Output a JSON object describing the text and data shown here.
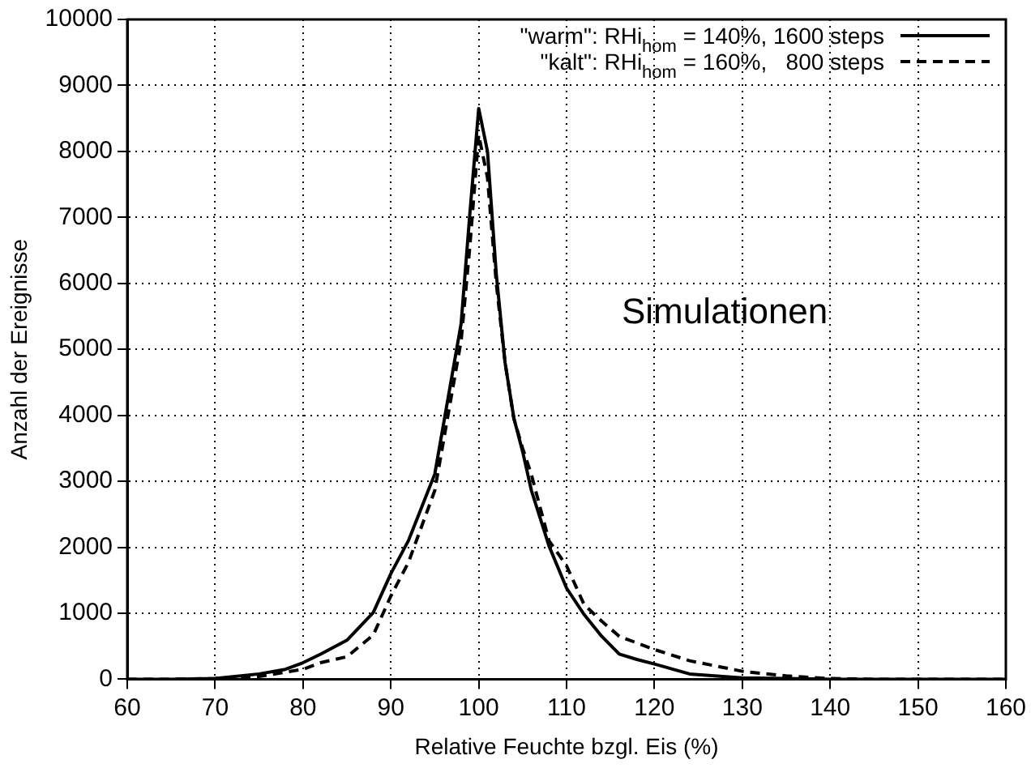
{
  "chart_data": {
    "type": "line",
    "xlabel": "Relative Feuchte bzgl. Eis (%)",
    "ylabel": "Anzahl der Ereignisse",
    "xlim": [
      60,
      160
    ],
    "xticks": [
      60,
      70,
      80,
      90,
      100,
      110,
      120,
      130,
      140,
      150,
      160
    ],
    "ylim": [
      0,
      10000
    ],
    "yticks": [
      0,
      1000,
      2000,
      3000,
      4000,
      5000,
      6000,
      7000,
      8000,
      9000,
      10000
    ],
    "grid": true,
    "legend": "top right",
    "marker": "none",
    "annotations": [
      "Simulationen"
    ],
    "series": [
      {
        "name": "\"warm\": RHi$_{hom}$ = 140%, 1600 steps",
        "color": "#000000",
        "line_style": "solid",
        "x": [
          60,
          65,
          70,
          75,
          78,
          80,
          82,
          85,
          88,
          90,
          92,
          95,
          98,
          99,
          100,
          101,
          102,
          103,
          104,
          105,
          106,
          107,
          108,
          110,
          112,
          114,
          116,
          118,
          120,
          124,
          130,
          140,
          160
        ],
        "values": [
          0,
          0,
          10,
          80,
          150,
          250,
          380,
          590,
          1010,
          1600,
          2100,
          3110,
          5390,
          7070,
          8650,
          8000,
          6140,
          4800,
          3960,
          3450,
          2860,
          2440,
          2020,
          1380,
          980,
          650,
          380,
          300,
          230,
          80,
          20,
          0,
          0
        ]
      },
      {
        "name": "\"kalt\": RHi$_{hom}$ = 160%,   800 steps",
        "color": "#000000",
        "line_style": "dashed",
        "x": [
          60,
          65,
          70,
          75,
          80,
          82,
          85,
          88,
          90,
          92,
          95,
          98,
          99,
          100,
          101,
          102,
          103,
          104,
          105,
          106,
          107,
          108,
          110,
          112,
          114,
          116,
          120,
          124,
          130,
          135,
          140,
          145,
          160
        ],
        "values": [
          0,
          0,
          10,
          40,
          150,
          250,
          340,
          670,
          1260,
          1770,
          2860,
          5130,
          6570,
          8250,
          7600,
          6000,
          4800,
          3950,
          3500,
          3100,
          2600,
          2100,
          1720,
          1130,
          880,
          650,
          450,
          280,
          120,
          50,
          10,
          0,
          0
        ]
      }
    ]
  }
}
